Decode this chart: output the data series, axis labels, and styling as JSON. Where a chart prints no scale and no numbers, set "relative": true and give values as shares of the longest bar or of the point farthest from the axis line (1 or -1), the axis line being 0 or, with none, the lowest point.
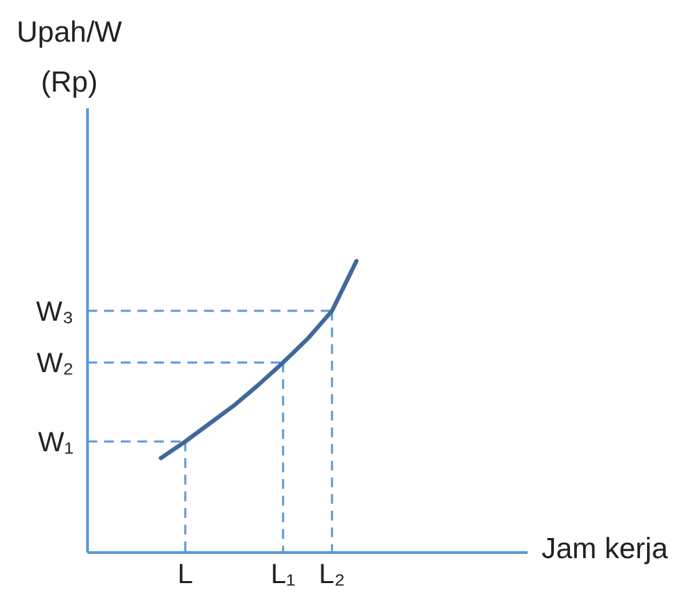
{
  "chart_data": {
    "type": "line",
    "relative": true,
    "xlabel": "Jam kerja",
    "annotations": [
      "Upah/W\n(Rp)"
    ],
    "marker": "none",
    "categories": [
      null,
      null,
      null,
      null,
      "L",
      null,
      null,
      null,
      "L₁",
      null,
      "L₂",
      null,
      null,
      null,
      null,
      null,
      null,
      null,
      null
    ],
    "series": [
      {
        "color": "#41689a",
        "line_style": "solid",
        "values": [
          null,
          null,
          null,
          0.324,
          0.381,
          0.443,
          0.505,
          0.576,
          0.652,
          0.733,
          0.829,
          1,
          null,
          null,
          null,
          null,
          null,
          null,
          null
        ]
      }
    ],
    "ref_lines": [
      {
        "axis": "y",
        "value": 0.381,
        "label": "W₁",
        "color": "#5b9bd5",
        "line_style": "dashed"
      },
      {
        "axis": "y",
        "value": 0.652,
        "label": "W₂",
        "color": "#5b9bd5",
        "line_style": "dashed"
      },
      {
        "axis": "y",
        "value": 0.829,
        "label": "W₃",
        "color": "#5b9bd5",
        "line_style": "dashed"
      },
      {
        "axis": "x",
        "value": "L",
        "color": "#5b9bd5",
        "line_style": "dashed"
      },
      {
        "axis": "x",
        "value": "L₁",
        "color": "#5b9bd5",
        "line_style": "dashed"
      },
      {
        "axis": "x",
        "value": "L₂",
        "color": "#5b9bd5",
        "line_style": "dashed"
      }
    ]
  }
}
